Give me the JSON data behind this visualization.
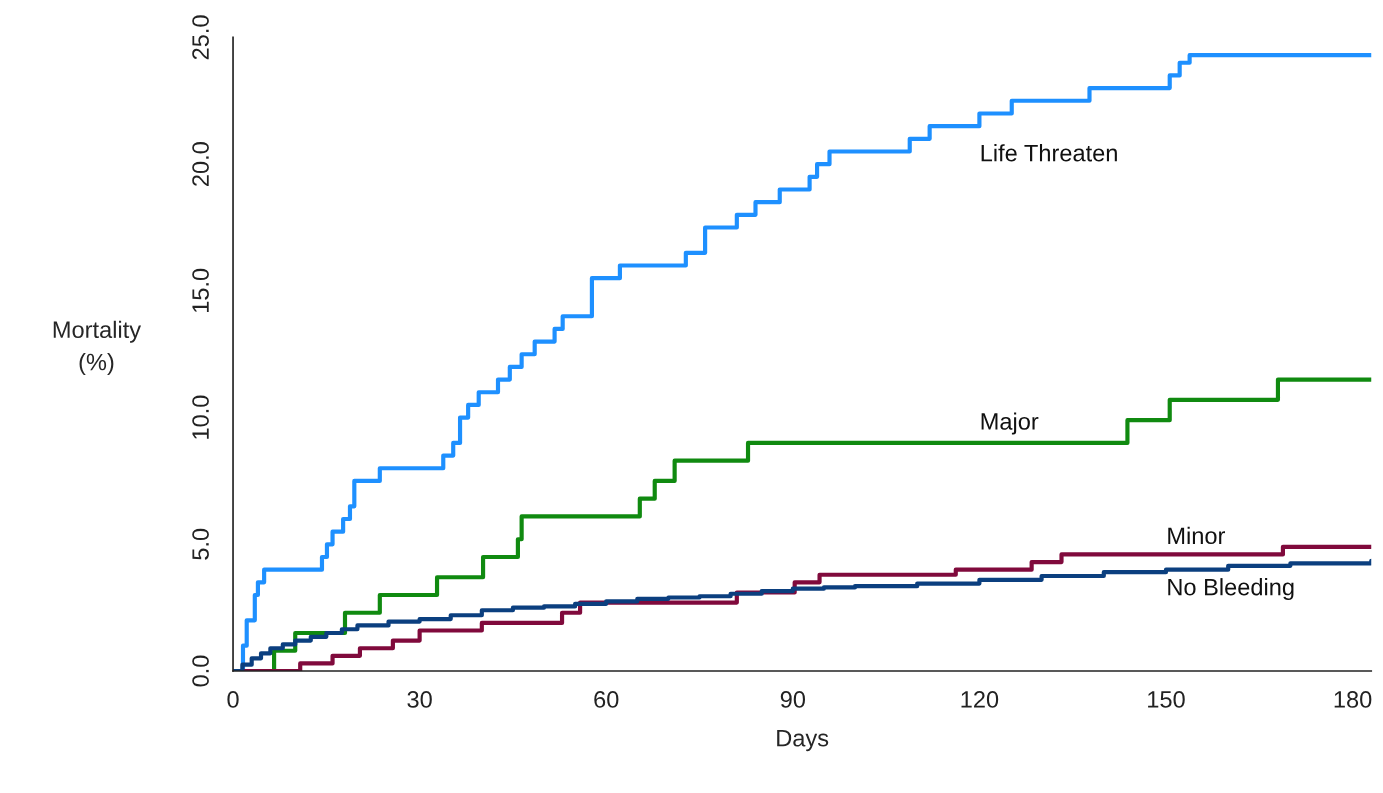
{
  "chart_data": {
    "type": "step",
    "xlabel": "Days",
    "ylabel": "Mortality\n(%)",
    "xlim": [
      0,
      183
    ],
    "ylim": [
      0,
      25
    ],
    "xticks": [
      0,
      30,
      60,
      90,
      120,
      150,
      180
    ],
    "yticks": [
      {
        "value": 0,
        "label": "0.0"
      },
      {
        "value": 5,
        "label": "5.0"
      },
      {
        "value": 10,
        "label": "10.0"
      },
      {
        "value": 15,
        "label": "15.0"
      },
      {
        "value": 20,
        "label": "20.0"
      },
      {
        "value": 25,
        "label": "25.0"
      }
    ],
    "grid": false,
    "series": [
      {
        "name": "Life Threaten",
        "color": "#1e90ff",
        "x": [
          0,
          1.6,
          2.2,
          3.5,
          4.0,
          5.0,
          14.3,
          15.1,
          16.0,
          17.7,
          18.8,
          19.5,
          20.4,
          23.6,
          33.8,
          35.4,
          36.5,
          37.8,
          39.5,
          42.6,
          44.5,
          46.4,
          48.5,
          51.7,
          53.0,
          57.7,
          62.2,
          72.8,
          75.9,
          81.0,
          84.0,
          87.9,
          92.7,
          93.9,
          95.9,
          108.8,
          112.0,
          120.0,
          125.2,
          137.7,
          150.6,
          152.2,
          153.8,
          183
        ],
        "values": [
          0,
          1.0,
          2.0,
          3.0,
          3.5,
          4.0,
          4.5,
          5.0,
          5.5,
          6.0,
          6.5,
          7.5,
          7.5,
          8.0,
          8.5,
          9.0,
          10.0,
          10.5,
          11.0,
          11.5,
          12.0,
          12.5,
          13.0,
          13.5,
          14.0,
          15.5,
          16.0,
          16.5,
          17.5,
          18.0,
          18.5,
          19.0,
          19.5,
          20.0,
          20.5,
          21.0,
          21.5,
          22.0,
          22.5,
          23.0,
          23.5,
          24.0,
          24.3,
          24.3
        ]
      },
      {
        "name": "Major",
        "color": "#108a10",
        "x": [
          0,
          6.6,
          10.0,
          18.0,
          23.6,
          32.8,
          40.2,
          45.8,
          46.4,
          65.4,
          67.8,
          71.0,
          82.8,
          143.8,
          150.6,
          168.0,
          183
        ],
        "values": [
          0,
          0.8,
          1.5,
          2.3,
          3.0,
          3.7,
          4.5,
          5.2,
          6.1,
          6.8,
          7.5,
          8.3,
          9.0,
          9.9,
          10.7,
          11.5,
          11.5
        ]
      },
      {
        "name": "Minor",
        "color": "#800a3c",
        "x": [
          0,
          10.8,
          16.0,
          20.4,
          25.7,
          30.0,
          40.0,
          52.9,
          55.8,
          81.0,
          90.3,
          94.3,
          116.2,
          128.4,
          133.2,
          168.8,
          183
        ],
        "values": [
          0,
          0.3,
          0.6,
          0.9,
          1.2,
          1.6,
          1.9,
          2.3,
          2.7,
          3.1,
          3.5,
          3.8,
          4.0,
          4.3,
          4.6,
          4.9,
          4.9
        ]
      },
      {
        "name": "No Bleeding",
        "color": "#0b3f7f",
        "x": [
          0,
          1.5,
          3,
          4.5,
          6,
          8,
          10,
          12.5,
          15,
          17.5,
          20,
          25,
          30,
          35,
          40,
          45,
          50,
          55,
          60,
          65,
          70,
          75,
          80,
          85,
          90,
          95,
          100,
          110,
          120,
          130,
          140,
          150,
          160,
          170,
          183
        ],
        "values": [
          0,
          0.25,
          0.5,
          0.7,
          0.9,
          1.05,
          1.2,
          1.35,
          1.5,
          1.65,
          1.8,
          1.95,
          2.05,
          2.2,
          2.4,
          2.5,
          2.55,
          2.65,
          2.75,
          2.85,
          2.9,
          2.95,
          3.05,
          3.15,
          3.25,
          3.3,
          3.35,
          3.45,
          3.6,
          3.75,
          3.9,
          4.0,
          4.15,
          4.25,
          4.35
        ]
      }
    ]
  }
}
